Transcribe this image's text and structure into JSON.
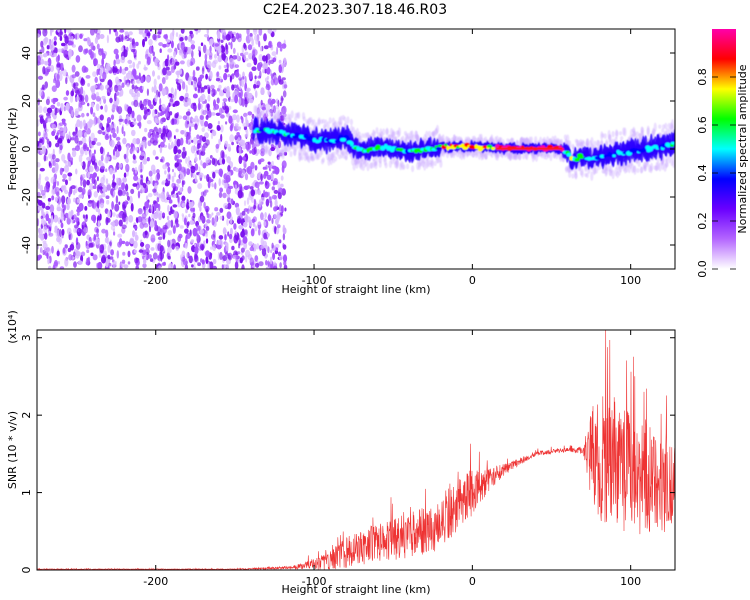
{
  "title": "C2E4.2023.307.18.46.R03",
  "chart_data": [
    {
      "type": "heatmap",
      "xlabel": "Height of straight line (km)",
      "ylabel": "Frequency (Hz)",
      "xlim": [
        -275,
        128
      ],
      "ylim": [
        -50,
        50
      ],
      "x_ticks": [
        -200,
        -100,
        0,
        100
      ],
      "y_ticks": [
        -40,
        -20,
        0,
        20,
        40
      ],
      "noise_region": {
        "x": [
          -275,
          -118
        ],
        "y": [
          -50,
          50
        ]
      },
      "trace": {
        "x": [
          -138,
          -125,
          -115,
          -100,
          -90,
          -80,
          -75,
          -70,
          -60,
          -50,
          -40,
          -30,
          -20,
          -10,
          0,
          10,
          20,
          30,
          40,
          50,
          55,
          60,
          63,
          68,
          75,
          80,
          90,
          100,
          110,
          120,
          128
        ],
        "y": [
          8,
          7,
          6,
          4,
          3,
          5,
          1,
          -1,
          1,
          0,
          -1,
          0,
          1,
          1,
          1,
          0.5,
          0.3,
          0.2,
          0.2,
          0.2,
          0.1,
          -2,
          -5,
          -3,
          -4,
          -3,
          -2,
          -1,
          0,
          1,
          3
        ]
      },
      "colorbar": {
        "label": "Normalized spectral amplitude",
        "range": [
          0,
          1
        ],
        "ticks": [
          0.0,
          0.2,
          0.4,
          0.6,
          0.8
        ],
        "tick_labels": [
          "0.0",
          "0.2",
          "0.4",
          "0.6",
          "0.8"
        ],
        "colors": [
          "#ffffff",
          "#b466ff",
          "#6a00ff",
          "#0000ff",
          "#00ffff",
          "#00ff00",
          "#ffff00",
          "#ff0000",
          "#ff00aa"
        ]
      }
    },
    {
      "type": "line",
      "xlabel": "Height of straight line (km)",
      "ylabel": "SNR (10 * v/v)",
      "scale_label": "(x10⁴)",
      "xlim": [
        -275,
        128
      ],
      "ylim": [
        0,
        3.1
      ],
      "x_ticks": [
        -200,
        -100,
        0,
        100
      ],
      "y_ticks": [
        0,
        1,
        2,
        3
      ],
      "color": "#ee3333",
      "envelope": {
        "x": [
          -275,
          -150,
          -115,
          -105,
          -90,
          -80,
          -60,
          -40,
          -20,
          -10,
          0,
          10,
          20,
          30,
          40,
          50,
          60,
          70,
          75,
          80,
          85,
          90,
          95,
          100,
          105,
          110,
          115,
          120,
          128
        ],
        "mean": [
          0.01,
          0.01,
          0.03,
          0.06,
          0.12,
          0.22,
          0.35,
          0.45,
          0.6,
          0.85,
          1.0,
          1.15,
          1.3,
          1.4,
          1.5,
          1.53,
          1.55,
          1.55,
          1.5,
          1.45,
          1.4,
          1.35,
          1.3,
          1.25,
          1.2,
          1.15,
          1.1,
          1.05,
          1.0
        ],
        "spread": [
          0.005,
          0.005,
          0.02,
          0.05,
          0.12,
          0.2,
          0.25,
          0.3,
          0.35,
          0.35,
          0.3,
          0.15,
          0.08,
          0.04,
          0.03,
          0.03,
          0.03,
          0.05,
          0.6,
          0.8,
          0.9,
          0.9,
          0.85,
          0.8,
          0.75,
          0.7,
          0.65,
          0.6,
          0.6
        ]
      }
    }
  ]
}
